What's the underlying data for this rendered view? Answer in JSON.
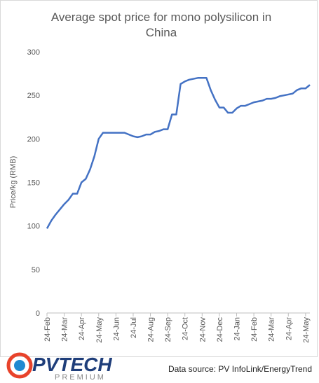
{
  "chart_data": {
    "type": "line",
    "title": "Average spot price for mono polysilicon in China",
    "y_label": "Price/kg (RMB)",
    "categories": [
      "24-Feb",
      null,
      null,
      null,
      "24-Mar",
      null,
      null,
      null,
      "24-Apr",
      null,
      null,
      null,
      "24-May",
      null,
      null,
      null,
      "24-Jun",
      null,
      null,
      null,
      "24-Jul",
      null,
      null,
      null,
      "24-Aug",
      null,
      null,
      null,
      "24-Sep",
      null,
      null,
      null,
      "24-Oct",
      null,
      null,
      null,
      "24-Nov",
      null,
      null,
      null,
      "24-Dec",
      null,
      null,
      null,
      "24-Jan",
      null,
      null,
      null,
      "24-Feb",
      null,
      null,
      null,
      "24-Mar",
      null,
      null,
      null,
      "24-Apr",
      null,
      null,
      null,
      "24-May",
      null
    ],
    "series": [
      {
        "name": "Price",
        "color": "#4472c4",
        "values": [
          97,
          106,
          113,
          119,
          125,
          130,
          137,
          137,
          150,
          154,
          165,
          180,
          200,
          207,
          207,
          207,
          207,
          207,
          207,
          205,
          203,
          202,
          203,
          205,
          205,
          208,
          209,
          211,
          211,
          228,
          228,
          263,
          266,
          268,
          269,
          270,
          270,
          270,
          256,
          245,
          236,
          236,
          230,
          230,
          235,
          238,
          238,
          240,
          242,
          243,
          244,
          246,
          246,
          247,
          249,
          250,
          251,
          252,
          256,
          258,
          258,
          262
        ]
      }
    ],
    "ylim": [
      0,
      300
    ],
    "yticks": [
      0,
      50,
      100,
      150,
      200,
      250,
      300
    ],
    "grid": false
  },
  "source": "Data source: PV  InfoLink/EnergyTrend",
  "logo": {
    "name": "PVTECH",
    "tagline": "PREMIUM"
  }
}
